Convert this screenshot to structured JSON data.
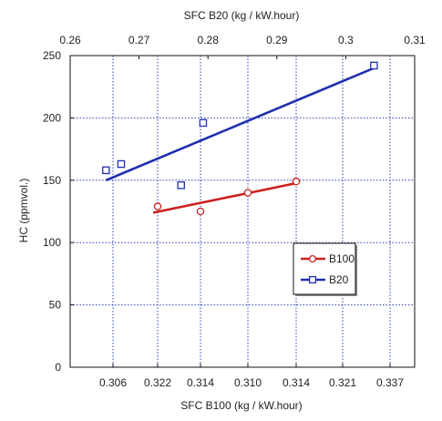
{
  "chart_data": {
    "type": "scatter",
    "title": "",
    "top_axis": {
      "label": "SFC B20 (kg / kW.hour)",
      "ticks": [
        "0.26",
        "0.27",
        "0.28",
        "0.29",
        "0.3",
        "0.31"
      ],
      "range": [
        0.26,
        0.31
      ]
    },
    "bottom_axis": {
      "label": "SFC B100 (kg / kW.hour)",
      "ticks": [
        "0.306",
        "0.322",
        "0.314",
        "0.310",
        "0.314",
        "0.321",
        "0.337"
      ],
      "note": "bottom tick labels are non-monotonic as printed"
    },
    "y_axis": {
      "label": "HC (ppmvol.)",
      "ticks": [
        "0",
        "50",
        "100",
        "150",
        "200",
        "250"
      ],
      "range": [
        0,
        250
      ]
    },
    "grid": true,
    "legend_position": "lower-right",
    "series": [
      {
        "name": "B100",
        "color": "#cc1f1f",
        "marker": "circle",
        "axis": "bottom",
        "points": [
          [
            1,
            129
          ],
          [
            2,
            125
          ],
          [
            3,
            140
          ],
          [
            4,
            149
          ]
        ],
        "fit": [
          [
            0.9,
            124
          ],
          [
            4.05,
            148
          ]
        ]
      },
      {
        "name": "B20",
        "color": "#1f2fb0",
        "marker": "square",
        "axis": "top",
        "points": [
          [
            0.2652,
            158
          ],
          [
            0.2674,
            163
          ],
          [
            0.2761,
            146
          ],
          [
            0.2793,
            196
          ],
          [
            0.3041,
            242
          ]
        ],
        "fit": [
          [
            0.2652,
            150
          ],
          [
            0.3041,
            240
          ]
        ]
      }
    ]
  }
}
